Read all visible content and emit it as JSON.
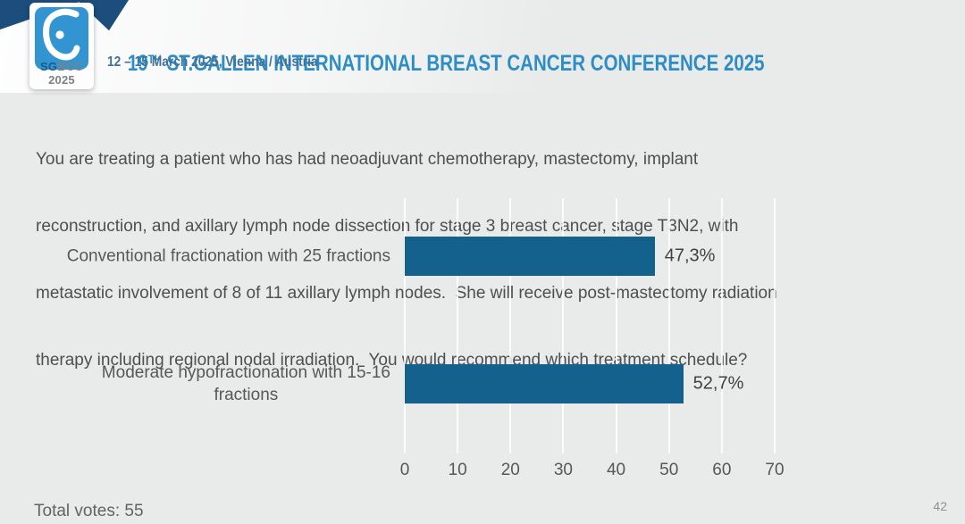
{
  "slide": {
    "header": {
      "logo": {
        "icon": "breast-drop-icon",
        "caption_bold": "SG",
        "caption_rest": "BCC 2025"
      },
      "title_number": "19",
      "title_ordinal": "TH",
      "title_rest": " ST.GALLEN INTERNATIONAL BREAST CANCER CONFERENCE 2025",
      "subtitle": "12 – 15 March 2025, Vienna / Austria"
    },
    "question_lines": [
      "You are treating a patient who has had neoadjuvant chemotherapy, mastectomy, implant",
      "reconstruction, and axillary lymph node dissection for stage 3 breast cancer, stage T3N2, with",
      "metastatic involvement of 8 of 11 axillary lymph nodes.  She will receive post-mastectomy radiation",
      "therapy including regional nodal irradiation.  You would recommend which treatment schedule?"
    ],
    "footer": {
      "total_votes": "Total votes: 55",
      "page_number": "42"
    }
  },
  "chart_data": {
    "type": "bar",
    "orientation": "horizontal",
    "categories": [
      "Conventional fractionation with 25 fractions",
      "Moderate hypofractionation with 15-16 fractions"
    ],
    "category_display_lines": [
      [
        "Conventional fractionation with 25 fractions"
      ],
      [
        "Moderate hypofractionation with 15-16",
        "fractions"
      ]
    ],
    "values": [
      47.3,
      52.7
    ],
    "value_labels": [
      "47,3%",
      "52,7%"
    ],
    "xlim": [
      0,
      70
    ],
    "xticks": [
      0,
      10,
      20,
      30,
      40,
      50,
      60,
      70
    ],
    "grid": true,
    "legend": false,
    "bar_color": "#15618e"
  },
  "colors": {
    "background": "#e9eaea",
    "stripe_navy": "#1b4d7d",
    "logo_blue": "#3294d0",
    "title_blue": "#2d8ec6",
    "subtitle_blue": "#40719a",
    "bar_blue": "#15618e",
    "text_gray": "#4e4f50"
  }
}
